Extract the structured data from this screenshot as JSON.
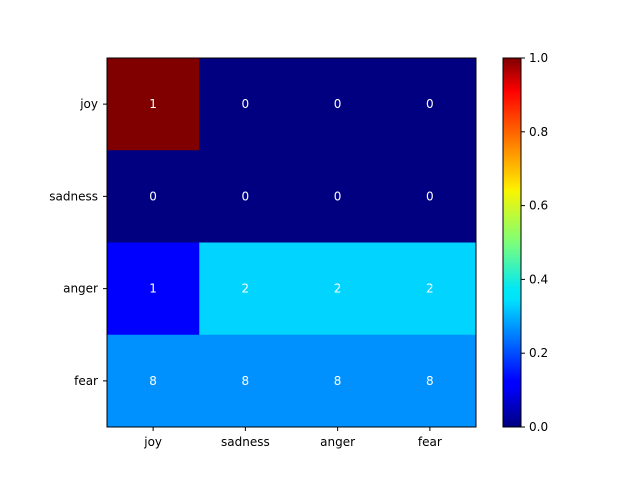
{
  "chart_data": {
    "type": "heatmap",
    "rows": [
      "joy",
      "sadness",
      "anger",
      "fear"
    ],
    "columns": [
      "joy",
      "sadness",
      "anger",
      "fear"
    ],
    "cell_labels": [
      [
        "1",
        "0",
        "0",
        "0"
      ],
      [
        "0",
        "0",
        "0",
        "0"
      ],
      [
        "1",
        "2",
        "2",
        "2"
      ],
      [
        "8",
        "8",
        "8",
        "8"
      ]
    ],
    "color_values": [
      [
        1.0,
        0.0,
        0.0,
        0.0
      ],
      [
        0.0,
        0.0,
        0.0,
        0.0
      ],
      [
        0.111,
        0.333,
        0.333,
        0.333
      ],
      [
        0.267,
        0.267,
        0.267,
        0.267
      ]
    ],
    "colormap": "jet",
    "colorbar": {
      "range": [
        0.0,
        1.0
      ],
      "ticks": [
        "0.0",
        "0.2",
        "0.4",
        "0.6",
        "0.8",
        "1.0"
      ],
      "position": "right"
    },
    "grid": false,
    "title": "",
    "xlabel": "",
    "ylabel": ""
  }
}
